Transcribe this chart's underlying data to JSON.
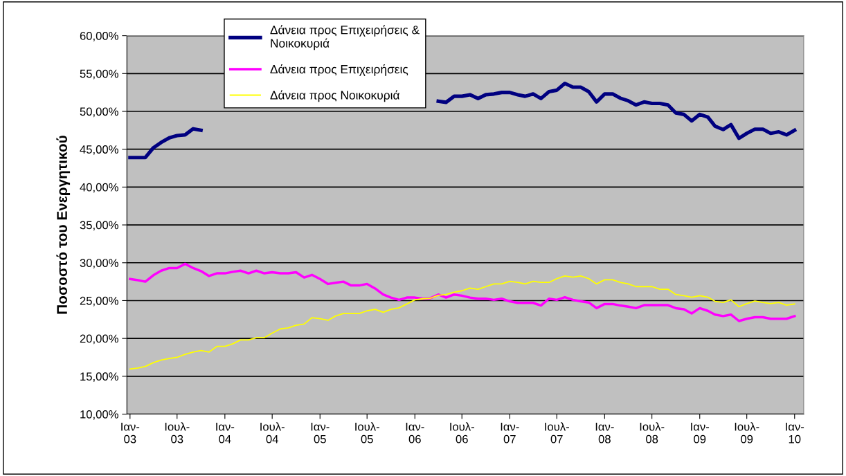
{
  "chart_data": {
    "type": "line",
    "ylabel": "Ποσοστό του Ενεργητικού",
    "x": [
      "2003-01",
      "2003-02",
      "2003-03",
      "2003-04",
      "2003-05",
      "2003-06",
      "2003-07",
      "2003-08",
      "2003-09",
      "2003-10",
      "2003-11",
      "2003-12",
      "2004-01",
      "2004-02",
      "2004-03",
      "2004-04",
      "2004-05",
      "2004-06",
      "2004-07",
      "2004-08",
      "2004-09",
      "2004-10",
      "2004-11",
      "2004-12",
      "2005-01",
      "2005-02",
      "2005-03",
      "2005-04",
      "2005-05",
      "2005-06",
      "2005-07",
      "2005-08",
      "2005-09",
      "2005-10",
      "2005-11",
      "2005-12",
      "2006-01",
      "2006-02",
      "2006-03",
      "2006-04",
      "2006-05",
      "2006-06",
      "2006-07",
      "2006-08",
      "2006-09",
      "2006-10",
      "2006-11",
      "2006-12",
      "2007-01",
      "2007-02",
      "2007-03",
      "2007-04",
      "2007-05",
      "2007-06",
      "2007-07",
      "2007-08",
      "2007-09",
      "2007-10",
      "2007-11",
      "2007-12",
      "2008-01",
      "2008-02",
      "2008-03",
      "2008-04",
      "2008-05",
      "2008-06",
      "2008-07",
      "2008-08",
      "2008-09",
      "2008-10",
      "2008-11",
      "2008-12",
      "2009-01",
      "2009-02",
      "2009-03",
      "2009-04",
      "2009-05",
      "2009-06",
      "2009-07",
      "2009-08",
      "2009-09",
      "2009-10",
      "2009-11",
      "2009-12",
      "2010-01"
    ],
    "series": [
      {
        "name": "Δάνεια προς Επιχειρήσεις & Νοικοκυριά",
        "color": "#000080",
        "values": [
          43.9,
          43.9,
          43.9,
          45.2,
          45.9,
          46.5,
          46.8,
          46.9,
          47.7,
          47.5,
          null,
          null,
          null,
          null,
          null,
          null,
          null,
          null,
          null,
          null,
          null,
          null,
          null,
          null,
          null,
          null,
          null,
          null,
          null,
          null,
          null,
          null,
          null,
          null,
          null,
          null,
          null,
          null,
          null,
          51.35,
          51.2,
          52.0,
          52.0,
          52.2,
          51.7,
          52.2,
          52.3,
          52.5,
          52.5,
          52.2,
          52.0,
          52.3,
          51.7,
          52.6,
          52.8,
          53.7,
          53.2,
          53.2,
          52.6,
          51.25,
          52.3,
          52.3,
          51.75,
          51.4,
          50.85,
          51.25,
          51.05,
          51.05,
          50.85,
          49.8,
          49.6,
          48.75,
          49.6,
          49.25,
          48.05,
          47.6,
          48.25,
          46.45,
          47.1,
          47.65,
          47.65,
          47.1,
          47.3,
          46.9,
          47.5
        ]
      },
      {
        "name": "Δάνεια προς Επιχειρήσεις",
        "color": "#ff00ff",
        "values": [
          27.86,
          27.7,
          27.5,
          28.35,
          28.95,
          29.3,
          29.3,
          29.85,
          29.3,
          28.9,
          28.25,
          28.6,
          28.6,
          28.8,
          28.95,
          28.6,
          28.95,
          28.6,
          28.75,
          28.6,
          28.6,
          28.75,
          28.05,
          28.4,
          27.85,
          27.2,
          27.35,
          27.5,
          27.0,
          27.0,
          27.2,
          26.6,
          25.8,
          25.4,
          25.1,
          25.4,
          25.4,
          25.25,
          25.3,
          25.8,
          25.4,
          25.8,
          25.65,
          25.4,
          25.25,
          25.25,
          25.1,
          25.25,
          24.9,
          24.7,
          24.7,
          24.7,
          24.35,
          25.25,
          25.1,
          25.45,
          25.1,
          24.9,
          24.75,
          24.0,
          24.55,
          24.55,
          24.35,
          24.2,
          24.0,
          24.4,
          24.4,
          24.4,
          24.4,
          24.0,
          23.85,
          23.3,
          24.0,
          23.65,
          23.15,
          22.95,
          23.15,
          22.3,
          22.6,
          22.8,
          22.8,
          22.6,
          22.6,
          22.6,
          22.95
        ]
      },
      {
        "name": "Δάνεια προς Νοικοκυριά",
        "color": "#ffff00",
        "values": [
          15.95,
          16.1,
          16.3,
          16.8,
          17.15,
          17.35,
          17.5,
          17.9,
          18.2,
          18.4,
          18.2,
          18.95,
          18.95,
          19.3,
          19.8,
          19.8,
          20.1,
          20.1,
          20.7,
          21.25,
          21.4,
          21.75,
          21.9,
          22.75,
          22.6,
          22.4,
          22.95,
          23.3,
          23.3,
          23.3,
          23.65,
          23.85,
          23.45,
          23.85,
          24.05,
          24.55,
          25.1,
          25.25,
          25.3,
          25.7,
          25.8,
          26.1,
          26.3,
          26.65,
          26.5,
          26.85,
          27.2,
          27.2,
          27.55,
          27.4,
          27.2,
          27.55,
          27.4,
          27.4,
          27.9,
          28.25,
          28.1,
          28.25,
          27.9,
          27.2,
          27.75,
          27.75,
          27.4,
          27.2,
          26.85,
          26.85,
          26.85,
          26.5,
          26.5,
          25.8,
          25.65,
          25.45,
          25.65,
          25.45,
          24.9,
          24.75,
          25.1,
          24.2,
          24.6,
          24.95,
          24.75,
          24.6,
          24.75,
          24.4,
          24.55
        ]
      }
    ],
    "xlim": [
      "2002-12-20",
      "2010-02-05"
    ],
    "xticks": [
      {
        "value": "2003-01",
        "label": "Ιαν-\n03"
      },
      {
        "value": "2003-07",
        "label": "Ιουλ-\n03"
      },
      {
        "value": "2004-01",
        "label": "Ιαν-\n04"
      },
      {
        "value": "2004-07",
        "label": "Ιουλ-\n04"
      },
      {
        "value": "2005-01",
        "label": "Ιαν-\n05"
      },
      {
        "value": "2005-07",
        "label": "Ιουλ-\n05"
      },
      {
        "value": "2006-01",
        "label": "Ιαν-\n06"
      },
      {
        "value": "2006-07",
        "label": "Ιουλ-\n06"
      },
      {
        "value": "2007-01",
        "label": "Ιαν-\n07"
      },
      {
        "value": "2007-07",
        "label": "Ιουλ-\n07"
      },
      {
        "value": "2008-01",
        "label": "Ιαν-\n08"
      },
      {
        "value": "2008-07",
        "label": "Ιουλ-\n08"
      },
      {
        "value": "2009-01",
        "label": "Ιαν-\n09"
      },
      {
        "value": "2009-07",
        "label": "Ιουλ-\n09"
      },
      {
        "value": "2010-01",
        "label": "Ιαν-\n10"
      }
    ],
    "ylim": [
      10,
      60
    ],
    "yticks": [
      {
        "value": 10,
        "label": "10,00%"
      },
      {
        "value": 15,
        "label": "15,00%"
      },
      {
        "value": 20,
        "label": "20,00%"
      },
      {
        "value": 25,
        "label": "25,00%"
      },
      {
        "value": 30,
        "label": "30,00%"
      },
      {
        "value": 35,
        "label": "35,00%"
      },
      {
        "value": 40,
        "label": "40,00%"
      },
      {
        "value": 45,
        "label": "45,00%"
      },
      {
        "value": 50,
        "label": "50,00%"
      },
      {
        "value": 55,
        "label": "55,00%"
      },
      {
        "value": 60,
        "label": "60,00%"
      }
    ],
    "grid": "y",
    "legend": "top left",
    "marker": "none",
    "line_style": "solid"
  }
}
